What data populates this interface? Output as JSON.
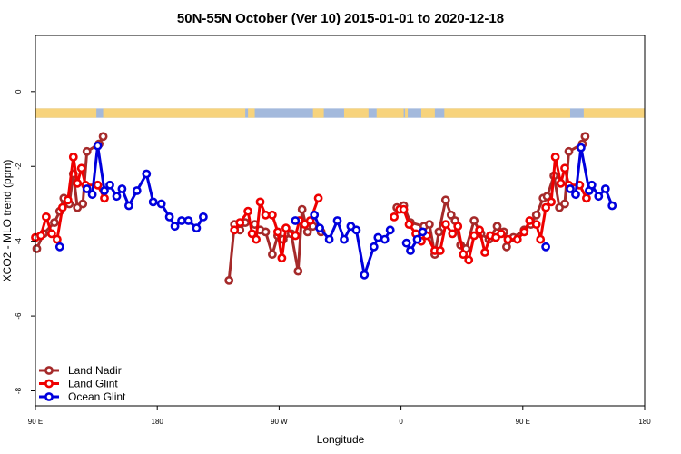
{
  "chart_data": {
    "type": "line",
    "title": "50N-55N October (Ver 10)   2015-01-01 to 2020-12-18",
    "xlabel": "Longitude",
    "ylabel": "XCO2 - MLO trend (ppm)",
    "xlim": [
      90,
      540
    ],
    "ylim": [
      -8.4,
      1.5
    ],
    "x_ticks": [
      {
        "value": 90,
        "label": "90 E"
      },
      {
        "value": 180,
        "label": "180"
      },
      {
        "value": 270,
        "label": "90 W"
      },
      {
        "value": 360,
        "label": "0"
      },
      {
        "value": 450,
        "label": "90 E"
      },
      {
        "value": 540,
        "label": "180"
      }
    ],
    "y_ticks": [
      {
        "value": 0,
        "label": "0"
      },
      {
        "value": -2,
        "label": "-2"
      },
      {
        "value": -4,
        "label": "-4"
      },
      {
        "value": -6,
        "label": "-6"
      },
      {
        "value": -8,
        "label": "-8"
      }
    ],
    "land_mask_band": {
      "y_top": -0.45,
      "y_bottom": -0.7,
      "land_color": "#f7d37c",
      "ocean_color": "#a3b9dc"
    },
    "legend": {
      "position": "bottom-left"
    },
    "series": [
      {
        "name": "Land Nadir",
        "color": "#a52a2a",
        "segments": [
          [
            [
              91,
              -4.2
            ],
            [
              96,
              -3.8
            ],
            [
              104,
              -3.5
            ],
            [
              108,
              -3.2
            ],
            [
              111,
              -2.85
            ],
            [
              115,
              -3.0
            ],
            [
              118,
              -2.2
            ],
            [
              121,
              -3.1
            ],
            [
              125,
              -3.0
            ],
            [
              128,
              -1.6
            ],
            [
              137,
              -1.4
            ],
            [
              140,
              -1.2
            ]
          ],
          [
            [
              233,
              -5.05
            ],
            [
              237,
              -3.55
            ],
            [
              241,
              -3.7
            ],
            [
              245,
              -3.5
            ],
            [
              252,
              -3.55
            ],
            [
              256,
              -3.7
            ],
            [
              260,
              -3.75
            ],
            [
              265,
              -4.35
            ],
            [
              269,
              -3.85
            ],
            [
              273,
              -3.95
            ],
            [
              279,
              -3.8
            ],
            [
              284,
              -4.8
            ],
            [
              287,
              -3.15
            ],
            [
              291,
              -3.75
            ],
            [
              295,
              -3.6
            ],
            [
              301,
              -3.75
            ]
          ],
          [
            [
              357,
              -3.1
            ],
            [
              362,
              -3.05
            ],
            [
              367,
              -3.5
            ],
            [
              377,
              -3.6
            ],
            [
              381,
              -3.55
            ],
            [
              385,
              -4.35
            ],
            [
              388,
              -3.75
            ],
            [
              393,
              -2.9
            ],
            [
              397,
              -3.3
            ],
            [
              400,
              -3.45
            ],
            [
              404,
              -4.1
            ],
            [
              408,
              -4.2
            ],
            [
              414,
              -3.45
            ],
            [
              419,
              -3.8
            ],
            [
              425,
              -3.95
            ],
            [
              431,
              -3.6
            ],
            [
              436,
              -3.75
            ],
            [
              438,
              -4.15
            ],
            [
              443,
              -3.9
            ],
            [
              451,
              -3.7
            ],
            [
              456,
              -3.55
            ],
            [
              460,
              -3.3
            ],
            [
              465,
              -2.85
            ],
            [
              468,
              -2.8
            ],
            [
              473,
              -2.25
            ],
            [
              477,
              -3.1
            ],
            [
              481,
              -3.0
            ],
            [
              484,
              -1.6
            ],
            [
              494,
              -1.4
            ],
            [
              496,
              -1.2
            ]
          ]
        ]
      },
      {
        "name": "Land Glint",
        "color": "#ee0000",
        "segments": [
          [
            [
              90,
              -3.9
            ],
            [
              94,
              -3.85
            ],
            [
              98,
              -3.35
            ],
            [
              102,
              -3.8
            ],
            [
              106,
              -3.95
            ],
            [
              110,
              -3.1
            ],
            [
              114,
              -2.9
            ],
            [
              118,
              -1.75
            ],
            [
              121,
              -2.45
            ],
            [
              124,
              -2.05
            ],
            [
              127,
              -2.5
            ],
            [
              136,
              -2.5
            ],
            [
              141,
              -2.85
            ]
          ],
          [
            [
              237,
              -3.7
            ],
            [
              241,
              -3.5
            ],
            [
              247,
              -3.2
            ],
            [
              250,
              -3.8
            ],
            [
              253,
              -3.95
            ],
            [
              256,
              -2.95
            ],
            [
              260,
              -3.3
            ],
            [
              265,
              -3.3
            ],
            [
              269,
              -3.75
            ],
            [
              272,
              -4.45
            ],
            [
              275,
              -3.65
            ],
            [
              282,
              -3.85
            ],
            [
              285,
              -3.45
            ],
            [
              289,
              -3.55
            ],
            [
              293,
              -3.45
            ],
            [
              299,
              -2.85
            ]
          ],
          [
            [
              355,
              -3.35
            ],
            [
              359,
              -3.15
            ],
            [
              362,
              -3.15
            ],
            [
              366,
              -3.55
            ],
            [
              371,
              -3.8
            ],
            [
              375,
              -4.0
            ],
            [
              379,
              -3.85
            ],
            [
              385,
              -4.25
            ],
            [
              389,
              -4.25
            ],
            [
              393,
              -3.55
            ],
            [
              398,
              -3.8
            ],
            [
              402,
              -3.6
            ],
            [
              406,
              -4.35
            ],
            [
              410,
              -4.5
            ],
            [
              414,
              -3.85
            ],
            [
              418,
              -3.7
            ],
            [
              422,
              -4.3
            ],
            [
              426,
              -3.85
            ],
            [
              430,
              -3.9
            ],
            [
              434,
              -3.8
            ],
            [
              439,
              -3.95
            ],
            [
              446,
              -3.95
            ],
            [
              451,
              -3.75
            ],
            [
              455,
              -3.45
            ],
            [
              460,
              -3.55
            ],
            [
              463,
              -3.95
            ],
            [
              467,
              -3.1
            ],
            [
              471,
              -2.95
            ],
            [
              474,
              -1.75
            ],
            [
              478,
              -2.45
            ],
            [
              481,
              -2.05
            ],
            [
              484,
              -2.5
            ],
            [
              492,
              -2.5
            ],
            [
              497,
              -2.85
            ]
          ]
        ]
      },
      {
        "name": "Ocean Glint",
        "color": "#0000dd",
        "segments": [
          [
            [
              108,
              -4.15
            ]
          ],
          [
            [
              128,
              -2.6
            ],
            [
              132,
              -2.75
            ],
            [
              136,
              -1.45
            ],
            [
              141,
              -2.65
            ],
            [
              145,
              -2.5
            ],
            [
              150,
              -2.8
            ],
            [
              154,
              -2.6
            ],
            [
              159,
              -3.05
            ],
            [
              165,
              -2.65
            ],
            [
              172,
              -2.2
            ],
            [
              177,
              -2.95
            ],
            [
              183,
              -3.0
            ],
            [
              189,
              -3.35
            ],
            [
              193,
              -3.6
            ],
            [
              198,
              -3.45
            ],
            [
              203,
              -3.45
            ],
            [
              209,
              -3.65
            ],
            [
              214,
              -3.35
            ]
          ],
          [
            [
              282,
              -3.45
            ]
          ],
          [
            [
              296,
              -3.3
            ],
            [
              300,
              -3.65
            ],
            [
              307,
              -3.95
            ],
            [
              313,
              -3.45
            ],
            [
              318,
              -3.95
            ],
            [
              323,
              -3.6
            ],
            [
              327,
              -3.7
            ],
            [
              333,
              -4.9
            ],
            [
              340,
              -4.15
            ],
            [
              343,
              -3.9
            ],
            [
              348,
              -3.95
            ],
            [
              352,
              -3.7
            ]
          ],
          [
            [
              364,
              -4.05
            ],
            [
              367,
              -4.25
            ],
            [
              372,
              -3.95
            ],
            [
              376,
              -3.75
            ]
          ],
          [
            [
              467,
              -4.15
            ]
          ],
          [
            [
              485,
              -2.6
            ],
            [
              489,
              -2.75
            ],
            [
              493,
              -1.5
            ],
            [
              499,
              -2.65
            ],
            [
              501,
              -2.5
            ],
            [
              506,
              -2.8
            ],
            [
              511,
              -2.6
            ],
            [
              516,
              -3.05
            ]
          ]
        ]
      }
    ]
  }
}
